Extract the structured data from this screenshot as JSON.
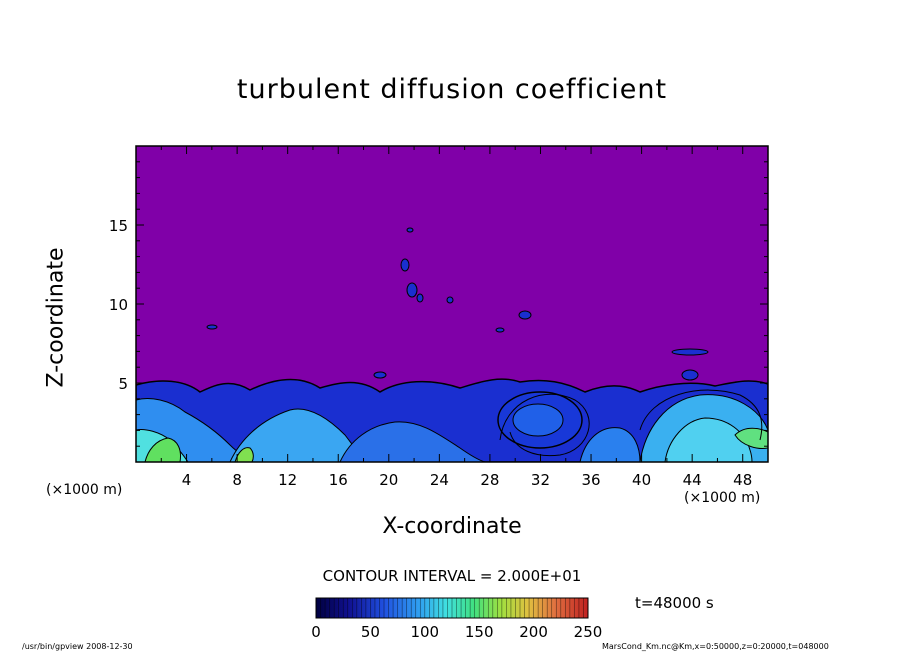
{
  "chart_data": {
    "type": "heatmap",
    "title": "turbulent diffusion coefficient",
    "xlabel": "X-coordinate",
    "ylabel": "Z-coordinate",
    "x_unit_left": "(×1000 m)",
    "x_unit_right": "(×1000 m)",
    "xlim": [
      0,
      50
    ],
    "ylim": [
      0,
      20
    ],
    "x_ticks": [
      4,
      8,
      12,
      16,
      20,
      24,
      28,
      32,
      36,
      40,
      44,
      48
    ],
    "x_tick_labels": [
      "4",
      "8",
      "12",
      "16",
      "20",
      "24",
      "28",
      "32",
      "36",
      "40",
      "44",
      "48"
    ],
    "y_ticks": [
      5,
      10,
      15
    ],
    "y_tick_labels": [
      "5",
      "10",
      "15"
    ],
    "contour_interval": "CONTOUR INTERVAL = 2.000E+01",
    "colorbar": {
      "min": 0,
      "max": 250,
      "ticks": [
        0,
        50,
        100,
        150,
        200,
        250
      ],
      "tick_labels": [
        "0",
        "50",
        "100",
        "150",
        "200",
        "250"
      ]
    },
    "background_color": "#8000a8",
    "timestamp": "t=48000 s",
    "footer_left": "/usr/bin/gpview   2008-12-30",
    "footer_right": "MarsCond_Km.nc@Km,x=0:50000,z=0:20000,t=048000"
  }
}
